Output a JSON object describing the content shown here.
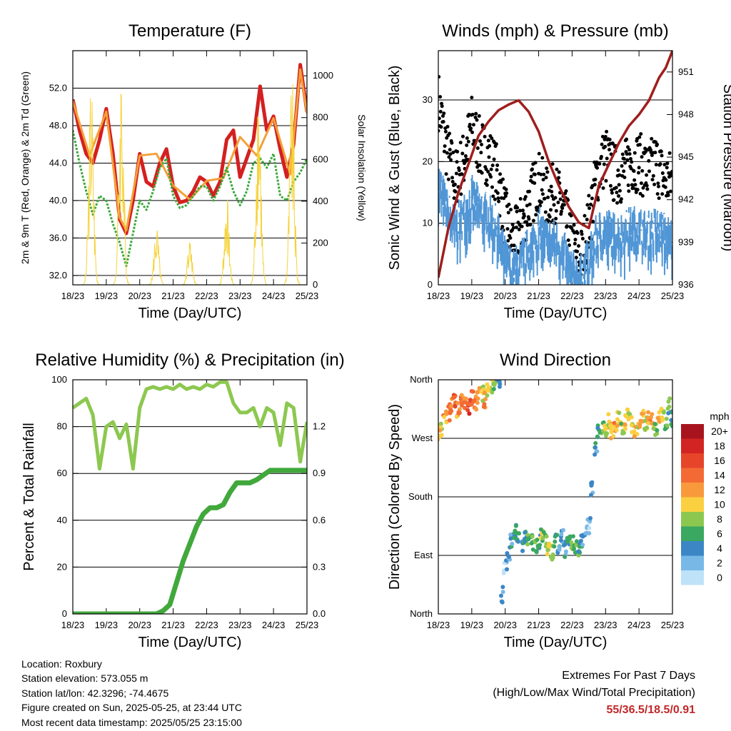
{
  "chart_data": [
    {
      "type": "line",
      "title": "Temperature (F)",
      "xlabel": "Time (Day/UTC)",
      "ylabel": "2m & 9m T (Red, Orange) & 2m Td (Green)",
      "y2label": "Solar Insolation (Yellow)",
      "x_ticks": [
        "18/23",
        "19/23",
        "20/23",
        "21/23",
        "22/23",
        "23/23",
        "24/23",
        "25/23"
      ],
      "y_ticks": [
        "32.0",
        "36.0",
        "40.0",
        "44.0",
        "48.0",
        "52.0"
      ],
      "y2_ticks": [
        "0",
        "200",
        "400",
        "600",
        "800",
        "1000"
      ],
      "ylim": [
        31,
        56
      ],
      "y2lim": [
        0,
        1120
      ],
      "grid": true,
      "series": [
        {
          "name": "2m T",
          "color": "#d42020",
          "x": [
            0,
            0.2,
            0.4,
            0.6,
            0.8,
            1.0,
            1.2,
            1.4,
            1.6,
            1.8,
            2.0,
            2.2,
            2.4,
            2.6,
            2.8,
            3.0,
            3.2,
            3.4,
            3.6,
            3.8,
            4.0,
            4.2,
            4.4,
            4.6,
            4.8,
            5.0,
            5.2,
            5.4,
            5.6,
            5.8,
            6.0,
            6.2,
            6.4,
            6.6,
            6.8,
            7.0
          ],
          "values": [
            50.8,
            47.5,
            45.0,
            44.0,
            46.5,
            49.8,
            45.0,
            38.0,
            36.5,
            40.0,
            45.0,
            42.0,
            41.5,
            44.0,
            45.5,
            41.5,
            39.8,
            40.0,
            41.0,
            42.5,
            42.0,
            40.5,
            42.0,
            46.5,
            47.5,
            42.5,
            44.5,
            46.5,
            52.2,
            47.5,
            49.0,
            45.5,
            42.5,
            46.0,
            54.5,
            49.5
          ]
        },
        {
          "name": "9m T",
          "color": "#f4a038",
          "x": [
            0,
            0.5,
            1.0,
            1.4,
            1.6,
            2.0,
            2.5,
            3.0,
            3.5,
            4.0,
            4.5,
            5.0,
            5.5,
            6.0,
            6.5,
            6.8,
            7.0
          ],
          "values": [
            50.6,
            44.8,
            49.5,
            38.2,
            36.8,
            44.8,
            45.0,
            41.6,
            40.1,
            42.1,
            42.4,
            46.8,
            44.8,
            48.8,
            42.8,
            54.0,
            49.3
          ]
        },
        {
          "name": "2m Td",
          "color": "#3aa83a",
          "x": [
            0,
            0.2,
            0.4,
            0.6,
            0.8,
            1.0,
            1.2,
            1.4,
            1.6,
            1.8,
            2.0,
            2.2,
            2.4,
            2.6,
            2.8,
            3.0,
            3.2,
            3.4,
            3.6,
            3.8,
            4.0,
            4.2,
            4.4,
            4.6,
            4.8,
            5.0,
            5.2,
            5.4,
            5.6,
            5.8,
            6.0,
            6.2,
            6.4,
            6.6,
            6.8,
            7.0
          ],
          "values": [
            47.5,
            44.0,
            41.0,
            38.5,
            40.5,
            40.0,
            37.5,
            35.5,
            33.0,
            36.5,
            40.0,
            39.0,
            41.0,
            43.5,
            44.5,
            40.5,
            39.2,
            39.5,
            40.5,
            41.5,
            41.5,
            40.0,
            41.5,
            43.5,
            41.0,
            39.5,
            41.0,
            44.0,
            44.5,
            43.5,
            45.0,
            40.5,
            40.0,
            42.0,
            43.0,
            44.5
          ]
        },
        {
          "name": "Solar",
          "color": "#f5d238",
          "axis": "y2",
          "x": [
            0.3,
            0.4,
            0.5,
            0.6,
            0.65,
            0.7,
            0.75,
            0.8,
            0.9,
            1.0,
            1.05,
            1.1,
            1.2,
            1.3,
            1.4,
            1.5,
            1.6,
            1.7,
            1.8,
            1.9,
            2.0,
            2.1,
            2.2,
            2.3,
            2.4,
            2.5,
            2.6,
            2.7,
            2.8,
            2.9,
            3.0,
            3.1,
            3.2,
            3.3,
            3.4,
            3.5,
            3.6,
            3.7,
            3.8,
            3.9,
            4.0,
            4.1,
            4.2,
            4.3,
            4.4,
            4.5,
            4.6,
            4.7,
            4.8,
            4.9,
            5.0,
            5.1,
            5.2,
            5.3,
            5.4,
            5.5,
            5.6,
            5.7,
            5.8,
            5.9,
            6.0,
            6.1,
            6.2,
            6.3,
            6.4,
            6.5,
            6.6,
            6.7,
            6.8,
            6.9,
            7.0
          ],
          "values": [
            0,
            40,
            250,
            600,
            1020,
            700,
            900,
            300,
            60,
            0,
            0,
            0,
            0,
            0,
            0,
            0,
            0,
            0,
            0,
            0,
            0,
            0,
            0,
            0,
            0,
            0,
            0,
            0,
            0,
            0,
            0,
            0,
            0,
            0,
            0,
            0,
            0,
            0,
            0,
            0,
            0,
            0,
            0,
            0,
            0,
            0,
            0,
            0,
            0,
            0,
            0,
            0,
            0,
            0,
            0,
            0,
            0,
            0,
            0,
            0,
            0,
            0,
            0,
            0,
            0,
            0,
            0,
            0,
            0,
            0,
            0
          ]
        }
      ]
    },
    {
      "type": "scatter",
      "title": "Winds (mph) & Pressure (mb)",
      "xlabel": "Time (Day/UTC)",
      "ylabel": "Sonic Wind & Gust (Blue, Black)",
      "y2label": "Station Pressure (Maroon)",
      "x_ticks": [
        "18/23",
        "19/23",
        "20/23",
        "21/23",
        "22/23",
        "23/23",
        "24/23",
        "25/23"
      ],
      "y_ticks": [
        "0",
        "10",
        "20",
        "30"
      ],
      "y2_ticks": [
        "936",
        "939",
        "942",
        "945",
        "948",
        "951"
      ],
      "ylim": [
        0,
        38
      ],
      "y2lim": [
        936,
        952.5
      ],
      "grid": true,
      "series": [
        {
          "name": "Gust",
          "color": "#000000",
          "x": [
            0,
            0.25,
            0.5,
            0.75,
            1.0,
            1.25,
            1.5,
            1.75,
            2.0,
            2.25,
            2.5,
            2.75,
            3.0,
            3.25,
            3.5,
            3.75,
            4.0,
            4.25,
            4.5,
            4.75,
            5.0,
            5.25,
            5.5,
            5.75,
            6.0,
            6.25,
            6.5,
            6.75,
            7.0
          ],
          "values": [
            30,
            22,
            17,
            20,
            26,
            22,
            21,
            18,
            11,
            7,
            10,
            14,
            17,
            14,
            15,
            12,
            6,
            4,
            10,
            18,
            21,
            18,
            18,
            20,
            20,
            18,
            20,
            17,
            17
          ]
        },
        {
          "name": "Wind",
          "color": "#5096d6",
          "x": [
            0,
            0.25,
            0.5,
            0.75,
            1.0,
            1.25,
            1.5,
            1.75,
            2.0,
            2.25,
            2.5,
            2.75,
            3.0,
            3.25,
            3.5,
            3.75,
            4.0,
            4.25,
            4.5,
            4.75,
            5.0,
            5.25,
            5.5,
            5.75,
            6.0,
            6.25,
            6.5,
            6.75,
            7.0
          ],
          "values": [
            18,
            13,
            10,
            12,
            15,
            13,
            12,
            10,
            5,
            3,
            5,
            7,
            10,
            8,
            8,
            6,
            3,
            2,
            5,
            9,
            10,
            9,
            9,
            10,
            10,
            9,
            10,
            9,
            8
          ]
        },
        {
          "name": "Pressure",
          "color": "#a01e1e",
          "axis": "y2",
          "x": [
            0,
            0.3,
            0.6,
            0.9,
            1.2,
            1.5,
            1.8,
            2.1,
            2.4,
            2.7,
            3.0,
            3.3,
            3.6,
            3.9,
            4.2,
            4.5,
            4.8,
            5.1,
            5.4,
            5.7,
            6.0,
            6.3,
            6.6,
            6.8,
            7.0
          ],
          "values": [
            936.5,
            940.0,
            942.5,
            944.5,
            946.5,
            947.5,
            948.3,
            948.7,
            949.0,
            948.2,
            946.8,
            944.7,
            943.0,
            941.5,
            940.4,
            940.0,
            943.0,
            944.5,
            946.0,
            947.2,
            948.0,
            949.0,
            950.6,
            951.3,
            952.5
          ]
        }
      ]
    },
    {
      "type": "line",
      "title": "Relative Humidity (%) & Precipitation (in)",
      "xlabel": "Time (Day/UTC)",
      "ylabel": "Percent & Total Rainfall",
      "x_ticks": [
        "18/23",
        "19/23",
        "20/23",
        "21/23",
        "22/23",
        "23/23",
        "24/23",
        "25/23"
      ],
      "y_ticks": [
        "0",
        "20",
        "40",
        "60",
        "80",
        "100"
      ],
      "y2_ticks": [
        "0.0",
        "0.3",
        "0.6",
        "0.9",
        "1.2"
      ],
      "ylim": [
        0,
        100
      ],
      "y2lim": [
        0,
        1.5
      ],
      "grid": true,
      "series": [
        {
          "name": "RH",
          "color": "#8cc850",
          "x": [
            0,
            0.2,
            0.4,
            0.6,
            0.8,
            1.0,
            1.2,
            1.4,
            1.6,
            1.8,
            2.0,
            2.2,
            2.4,
            2.6,
            2.8,
            3.0,
            3.2,
            3.4,
            3.6,
            3.8,
            4.0,
            4.2,
            4.4,
            4.6,
            4.8,
            5.0,
            5.2,
            5.4,
            5.6,
            5.8,
            6.0,
            6.2,
            6.4,
            6.6,
            6.8,
            7.0
          ],
          "values": [
            88,
            90,
            92,
            85,
            62,
            80,
            82,
            75,
            81,
            62,
            88,
            96,
            97,
            96,
            97,
            96,
            98,
            96,
            97,
            96,
            98,
            97,
            99,
            99,
            90,
            86,
            86,
            88,
            80,
            88,
            86,
            72,
            90,
            88,
            65,
            82
          ]
        },
        {
          "name": "Precip",
          "color": "#41a83c",
          "axis": "y2",
          "x": [
            0,
            0.5,
            1.0,
            1.5,
            2.0,
            2.5,
            2.7,
            2.9,
            3.1,
            3.3,
            3.5,
            3.7,
            3.9,
            4.1,
            4.3,
            4.5,
            4.7,
            4.9,
            5.1,
            5.3,
            5.5,
            5.7,
            5.9,
            6.1,
            6.3,
            6.5,
            6.7,
            7.0
          ],
          "values": [
            0,
            0,
            0,
            0,
            0,
            0,
            0.02,
            0.06,
            0.2,
            0.34,
            0.45,
            0.56,
            0.64,
            0.68,
            0.68,
            0.7,
            0.78,
            0.84,
            0.84,
            0.84,
            0.86,
            0.89,
            0.92,
            0.92,
            0.92,
            0.92,
            0.92,
            0.92
          ]
        }
      ]
    },
    {
      "type": "scatter",
      "title": "Wind Direction",
      "xlabel": "Time (Day/UTC)",
      "ylabel": "Direction (Colored By Speed)",
      "x_ticks": [
        "18/23",
        "19/23",
        "20/23",
        "21/23",
        "22/23",
        "23/23",
        "24/23",
        "25/23"
      ],
      "y_ticks": [
        "North",
        "East",
        "South",
        "West",
        "North"
      ],
      "ylim": [
        0,
        360
      ],
      "grid": true,
      "legend": {
        "title": "mph",
        "labels": [
          "20+",
          "18",
          "16",
          "14",
          "12",
          "10",
          "8",
          "6",
          "4",
          "2",
          "0"
        ],
        "colors": [
          "#a8141e",
          "#d22422",
          "#e6452a",
          "#f46a34",
          "#f89a3c",
          "#fad040",
          "#8cc850",
          "#3aa860",
          "#3c86c6",
          "#78b8e6",
          "#bee2f8"
        ]
      },
      "points": [
        [
          0.0,
          275,
          11
        ],
        [
          0.1,
          285,
          10
        ],
        [
          0.2,
          300,
          12
        ],
        [
          0.3,
          310,
          14
        ],
        [
          0.4,
          320,
          13
        ],
        [
          0.5,
          325,
          15
        ],
        [
          0.6,
          315,
          12
        ],
        [
          0.7,
          330,
          14
        ],
        [
          0.8,
          325,
          13
        ],
        [
          0.9,
          320,
          16
        ],
        [
          1.0,
          330,
          14
        ],
        [
          1.1,
          325,
          12
        ],
        [
          1.2,
          335,
          11
        ],
        [
          1.3,
          340,
          9
        ],
        [
          1.4,
          330,
          12
        ],
        [
          1.5,
          345,
          10
        ],
        [
          1.6,
          350,
          8
        ],
        [
          1.7,
          355,
          7
        ],
        [
          1.8,
          360,
          5
        ],
        [
          1.9,
          30,
          3
        ],
        [
          2.0,
          75,
          2
        ],
        [
          2.1,
          95,
          3
        ],
        [
          2.2,
          110,
          4
        ],
        [
          2.3,
          125,
          5
        ],
        [
          2.4,
          115,
          4
        ],
        [
          2.5,
          100,
          3
        ],
        [
          2.6,
          120,
          5
        ],
        [
          2.7,
          115,
          6
        ],
        [
          2.8,
          110,
          7
        ],
        [
          2.9,
          105,
          6
        ],
        [
          3.0,
          110,
          5
        ],
        [
          3.1,
          120,
          8
        ],
        [
          3.2,
          115,
          7
        ],
        [
          3.3,
          100,
          9
        ],
        [
          3.4,
          95,
          8
        ],
        [
          3.5,
          110,
          6
        ],
        [
          3.6,
          105,
          4
        ],
        [
          3.7,
          120,
          3
        ],
        [
          3.8,
          100,
          4
        ],
        [
          3.9,
          115,
          6
        ],
        [
          4.0,
          110,
          8
        ],
        [
          4.1,
          105,
          7
        ],
        [
          4.2,
          100,
          6
        ],
        [
          4.3,
          115,
          4
        ],
        [
          4.4,
          125,
          3
        ],
        [
          4.5,
          135,
          2
        ],
        [
          4.6,
          190,
          3
        ],
        [
          4.7,
          250,
          4
        ],
        [
          4.8,
          280,
          5
        ],
        [
          4.9,
          290,
          7
        ],
        [
          5.0,
          285,
          9
        ],
        [
          5.1,
          295,
          10
        ],
        [
          5.2,
          280,
          11
        ],
        [
          5.3,
          290,
          12
        ],
        [
          5.4,
          300,
          10
        ],
        [
          5.5,
          285,
          8
        ],
        [
          5.6,
          295,
          11
        ],
        [
          5.7,
          305,
          9
        ],
        [
          5.8,
          290,
          10
        ],
        [
          5.9,
          280,
          12
        ],
        [
          6.0,
          295,
          10
        ],
        [
          6.1,
          300,
          11
        ],
        [
          6.2,
          290,
          9
        ],
        [
          6.3,
          305,
          12
        ],
        [
          6.4,
          295,
          10
        ],
        [
          6.5,
          285,
          8
        ],
        [
          6.6,
          300,
          11
        ],
        [
          6.7,
          310,
          9
        ],
        [
          6.8,
          295,
          7
        ],
        [
          6.9,
          320,
          6
        ],
        [
          7.0,
          300,
          5
        ]
      ]
    }
  ],
  "station_info": {
    "location": "Location: Roxbury",
    "elevation": "Station elevation: 573.055 m",
    "latlon": "Station lat/lon: 42.3296; -74.4675",
    "created": "Figure created on Sun, 2025-05-25, at 23:44 UTC",
    "recent": "Most recent data timestamp: 2025/05/25 23:15:00"
  },
  "extremes": {
    "title": "Extremes For Past 7 Days",
    "subtitle": "(High/Low/Max Wind/Total Precipitation)",
    "values": "55/36.5/18.5/0.91"
  }
}
